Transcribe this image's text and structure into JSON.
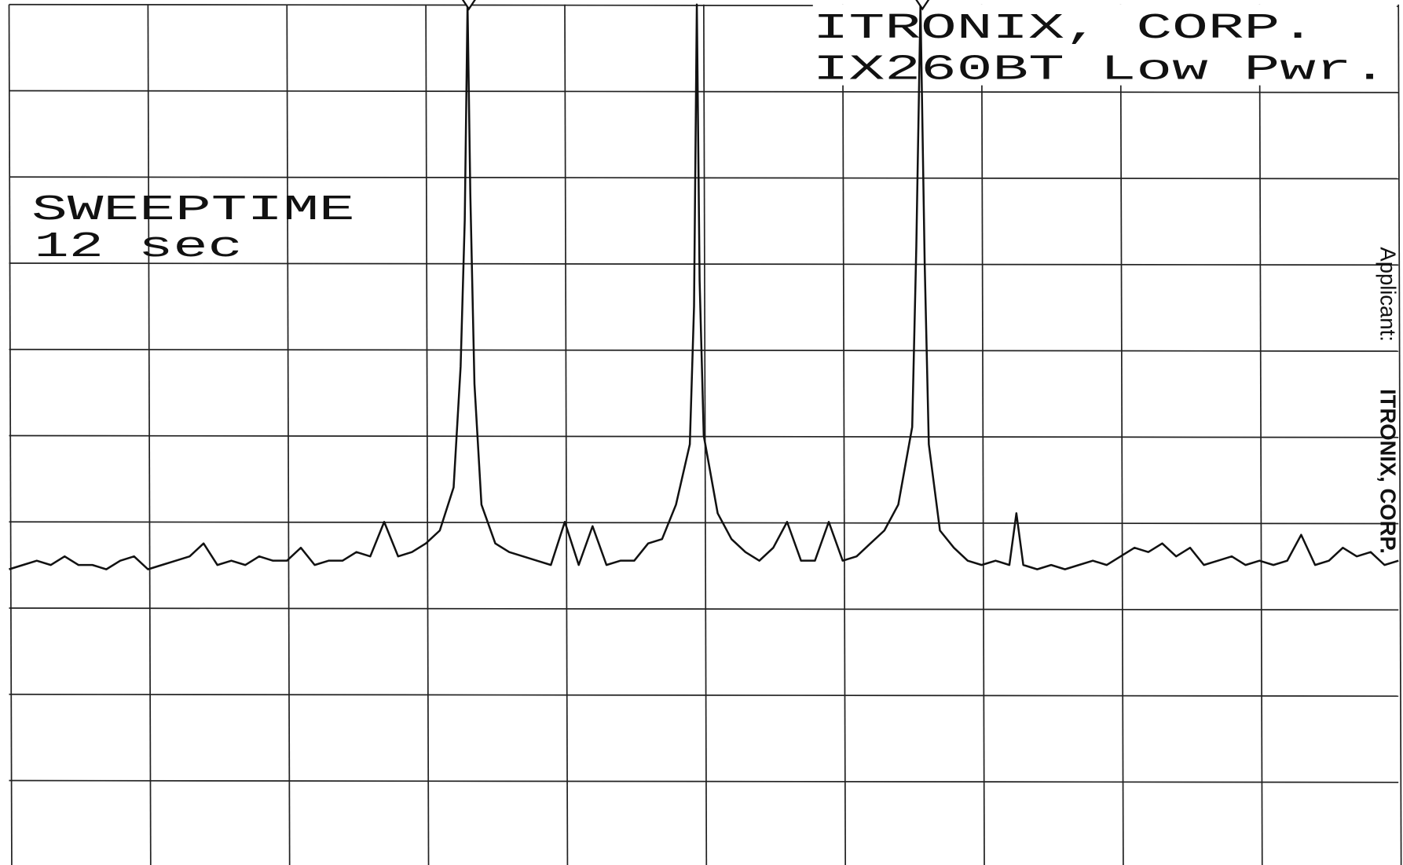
{
  "chart_data": {
    "type": "line",
    "annotations": [
      "ITRONIX, CORP.",
      "IX260BT Low Pwr.",
      "SWEEPTIME",
      "12 sec"
    ],
    "side_note": {
      "label": "Applicant:",
      "name": "ITRONIX, CORP."
    },
    "xlim": [
      0,
      10
    ],
    "ylim": [
      0,
      10
    ],
    "grid": true,
    "color": "#111111",
    "x": [
      0,
      0.1,
      0.2,
      0.3,
      0.4,
      0.5,
      0.6,
      0.7,
      0.8,
      0.9,
      1.0,
      1.1,
      1.2,
      1.3,
      1.4,
      1.5,
      1.6,
      1.7,
      1.8,
      1.9,
      2.0,
      2.1,
      2.2,
      2.3,
      2.4,
      2.5,
      2.6,
      2.7,
      2.8,
      2.9,
      3.0,
      3.1,
      3.2,
      3.25,
      3.28,
      3.3,
      3.32,
      3.35,
      3.4,
      3.5,
      3.6,
      3.7,
      3.8,
      3.9,
      4.0,
      4.1,
      4.2,
      4.3,
      4.4,
      4.5,
      4.6,
      4.7,
      4.8,
      4.9,
      4.93,
      4.95,
      4.97,
      5.0,
      5.1,
      5.2,
      5.3,
      5.4,
      5.5,
      5.6,
      5.7,
      5.8,
      5.9,
      6.0,
      6.1,
      6.2,
      6.3,
      6.4,
      6.5,
      6.53,
      6.56,
      6.59,
      6.62,
      6.7,
      6.8,
      6.9,
      7.0,
      7.1,
      7.2,
      7.25,
      7.3,
      7.4,
      7.5,
      7.6,
      7.7,
      7.8,
      7.9,
      8.0,
      8.1,
      8.2,
      8.3,
      8.4,
      8.5,
      8.6,
      8.7,
      8.8,
      8.9,
      9.0,
      9.1,
      9.2,
      9.3,
      9.4,
      9.5,
      9.6,
      9.7,
      9.8,
      9.9,
      10.0
    ],
    "values": [
      3.45,
      3.5,
      3.55,
      3.5,
      3.6,
      3.5,
      3.5,
      3.45,
      3.55,
      3.6,
      3.45,
      3.5,
      3.55,
      3.6,
      3.75,
      3.5,
      3.55,
      3.5,
      3.6,
      3.55,
      3.55,
      3.7,
      3.5,
      3.55,
      3.55,
      3.65,
      3.6,
      4.0,
      3.6,
      3.65,
      3.75,
      3.9,
      4.4,
      5.8,
      7.5,
      10,
      7.8,
      5.6,
      4.2,
      3.75,
      3.65,
      3.6,
      3.55,
      3.5,
      4.0,
      3.5,
      3.95,
      3.5,
      3.55,
      3.55,
      3.75,
      3.8,
      4.2,
      4.9,
      6.5,
      10,
      6.8,
      5.0,
      4.1,
      3.8,
      3.65,
      3.55,
      3.7,
      4.0,
      3.55,
      3.55,
      4.0,
      3.55,
      3.6,
      3.75,
      3.9,
      4.2,
      5.1,
      7.2,
      10,
      7.0,
      4.9,
      3.9,
      3.7,
      3.55,
      3.5,
      3.55,
      3.5,
      4.1,
      3.5,
      3.45,
      3.5,
      3.45,
      3.5,
      3.55,
      3.5,
      3.6,
      3.7,
      3.65,
      3.75,
      3.6,
      3.7,
      3.5,
      3.55,
      3.6,
      3.5,
      3.55,
      3.5,
      3.55,
      3.85,
      3.5,
      3.55,
      3.7,
      3.6,
      3.65,
      3.5,
      3.55
    ]
  }
}
